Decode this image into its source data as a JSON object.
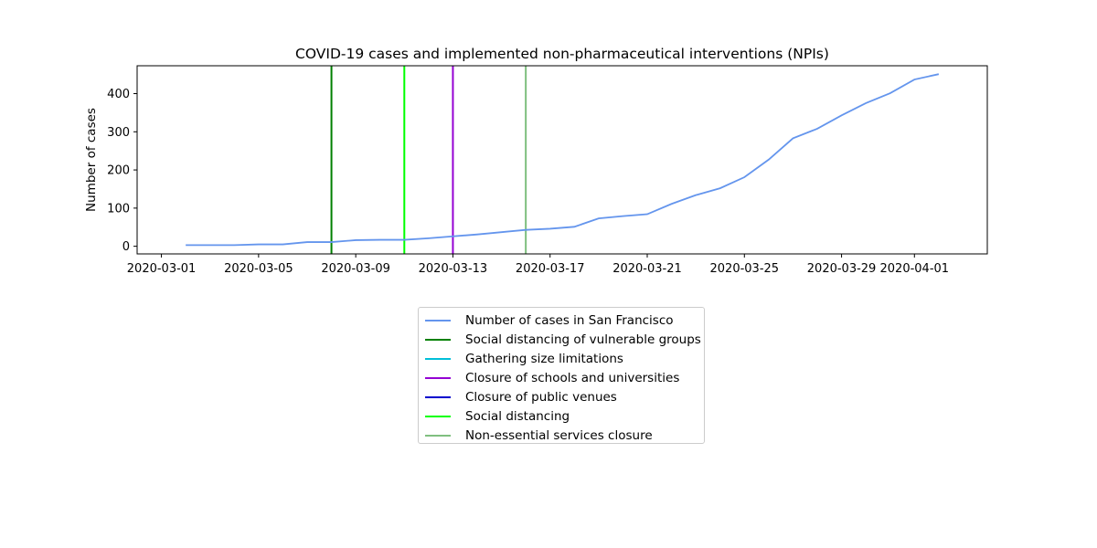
{
  "chart_data": {
    "type": "line",
    "title": "COVID-19 cases and implemented non-pharmaceutical interventions (NPIs)",
    "xlabel": "",
    "ylabel": "Number of cases",
    "x_ticks": [
      "2020-03-01",
      "2020-03-05",
      "2020-03-09",
      "2020-03-13",
      "2020-03-17",
      "2020-03-21",
      "2020-03-25",
      "2020-03-29",
      "2020-04-01"
    ],
    "y_ticks": [
      0,
      100,
      200,
      300,
      400
    ],
    "xlim": [
      "2020-02-29",
      "2020-04-04"
    ],
    "ylim": [
      -20,
      473
    ],
    "grid": false,
    "legend_position": "below",
    "series": [
      {
        "name": "Number of cases in San Francisco",
        "color": "#6495ED",
        "x": [
          "2020-03-02",
          "2020-03-03",
          "2020-03-04",
          "2020-03-05",
          "2020-03-06",
          "2020-03-07",
          "2020-03-08",
          "2020-03-09",
          "2020-03-10",
          "2020-03-11",
          "2020-03-12",
          "2020-03-13",
          "2020-03-14",
          "2020-03-15",
          "2020-03-16",
          "2020-03-17",
          "2020-03-18",
          "2020-03-19",
          "2020-03-20",
          "2020-03-21",
          "2020-03-22",
          "2020-03-23",
          "2020-03-24",
          "2020-03-25",
          "2020-03-26",
          "2020-03-27",
          "2020-03-28",
          "2020-03-29",
          "2020-03-30",
          "2020-03-31",
          "2020-04-01",
          "2020-04-02"
        ],
        "y": [
          3,
          3,
          3,
          5,
          5,
          11,
          11,
          16,
          17,
          17,
          21,
          26,
          31,
          37,
          43,
          46,
          51,
          73,
          79,
          84,
          111,
          134,
          152,
          181,
          227,
          283,
          308,
          343,
          375,
          401,
          437,
          451
        ]
      }
    ],
    "interventions": [
      {
        "name": "Social distancing of vulnerable groups",
        "date": "2020-03-08",
        "color": "#008000",
        "shown": true
      },
      {
        "name": "Gathering size limitations",
        "date": "2020-03-11",
        "color": "#00BFD8",
        "shown": false
      },
      {
        "name": "Closure of schools and universities",
        "date": "2020-03-13",
        "color": "#9400D3",
        "shown": true
      },
      {
        "name": "Closure of public venues",
        "date": "2020-03-16",
        "color": "#0000CD",
        "shown": false
      },
      {
        "name": "Social distancing",
        "date": "2020-03-11",
        "color": "#00FF00",
        "shown": true
      },
      {
        "name": "Non-essential services closure",
        "date": "2020-03-16",
        "color": "#7FBF7F",
        "shown": true
      }
    ]
  }
}
